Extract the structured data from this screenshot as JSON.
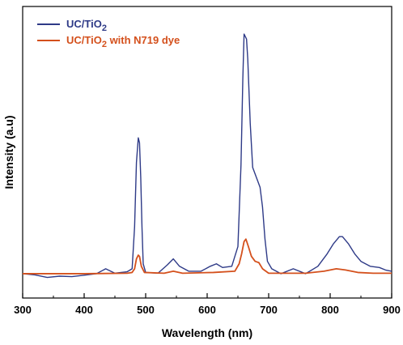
{
  "chart_data": {
    "type": "line",
    "title": "",
    "xlabel": "Wavelength (nm)",
    "ylabel": "Intensity (a.u)",
    "xlim": [
      300,
      900
    ],
    "ylim": [
      0,
      100
    ],
    "x_ticks": [
      300,
      400,
      500,
      600,
      700,
      800,
      900
    ],
    "x_tick_labels": [
      "300",
      "400",
      "500",
      "600",
      "700",
      "800",
      "900"
    ],
    "y_ticks_shown": false,
    "grid": false,
    "legend_position": "top-left",
    "series": [
      {
        "name": "UC/TiO2",
        "legend_main": "UC/TiO",
        "legend_sub": "2",
        "legend_tail": "",
        "color": "#2E3A87",
        "points": [
          [
            300,
            1.0
          ],
          [
            320,
            0.5
          ],
          [
            340,
            -0.5
          ],
          [
            360,
            0.0
          ],
          [
            380,
            -0.2
          ],
          [
            400,
            0.4
          ],
          [
            420,
            1.0
          ],
          [
            435,
            3.0
          ],
          [
            450,
            1.2
          ],
          [
            470,
            1.8
          ],
          [
            478,
            3.0
          ],
          [
            482,
            20
          ],
          [
            485,
            46
          ],
          [
            488,
            56
          ],
          [
            490,
            54
          ],
          [
            492,
            40
          ],
          [
            494,
            20
          ],
          [
            496,
            5
          ],
          [
            500,
            1.5
          ],
          [
            520,
            1.2
          ],
          [
            535,
            4.5
          ],
          [
            545,
            7.0
          ],
          [
            555,
            4.0
          ],
          [
            570,
            2.0
          ],
          [
            590,
            2.0
          ],
          [
            605,
            4.0
          ],
          [
            615,
            5.0
          ],
          [
            625,
            3.5
          ],
          [
            640,
            4.0
          ],
          [
            650,
            12
          ],
          [
            655,
            45
          ],
          [
            658,
            80
          ],
          [
            660,
            98
          ],
          [
            664,
            96
          ],
          [
            666,
            88
          ],
          [
            670,
            62
          ],
          [
            674,
            44
          ],
          [
            680,
            40
          ],
          [
            686,
            36
          ],
          [
            690,
            28
          ],
          [
            694,
            15
          ],
          [
            698,
            6
          ],
          [
            705,
            3.0
          ],
          [
            720,
            1.0
          ],
          [
            740,
            3.0
          ],
          [
            760,
            1.0
          ],
          [
            780,
            4.0
          ],
          [
            795,
            9
          ],
          [
            805,
            13
          ],
          [
            815,
            16
          ],
          [
            820,
            16
          ],
          [
            830,
            13
          ],
          [
            840,
            9
          ],
          [
            850,
            6
          ],
          [
            865,
            4.0
          ],
          [
            880,
            3.5
          ],
          [
            890,
            2.5
          ],
          [
            900,
            2.0
          ]
        ]
      },
      {
        "name": "UC/TiO2 with N719 dye",
        "legend_main": "UC/TiO",
        "legend_sub": "2",
        "legend_tail": " with N719 dye",
        "color": "#D4501C",
        "points": [
          [
            300,
            1.0
          ],
          [
            400,
            1.0
          ],
          [
            470,
            1.2
          ],
          [
            478,
            1.5
          ],
          [
            482,
            3.0
          ],
          [
            485,
            7.0
          ],
          [
            488,
            8.5
          ],
          [
            490,
            8.0
          ],
          [
            493,
            4.0
          ],
          [
            498,
            1.5
          ],
          [
            530,
            1.2
          ],
          [
            545,
            2.0
          ],
          [
            560,
            1.2
          ],
          [
            610,
            1.5
          ],
          [
            645,
            2.0
          ],
          [
            652,
            5.0
          ],
          [
            656,
            9.0
          ],
          [
            660,
            14
          ],
          [
            663,
            15
          ],
          [
            667,
            12
          ],
          [
            672,
            8.0
          ],
          [
            678,
            6.0
          ],
          [
            684,
            5.5
          ],
          [
            690,
            3.0
          ],
          [
            700,
            1.2
          ],
          [
            760,
            1.2
          ],
          [
            790,
            2.0
          ],
          [
            810,
            3.0
          ],
          [
            825,
            2.5
          ],
          [
            845,
            1.5
          ],
          [
            870,
            1.2
          ],
          [
            900,
            1.2
          ]
        ]
      }
    ]
  }
}
